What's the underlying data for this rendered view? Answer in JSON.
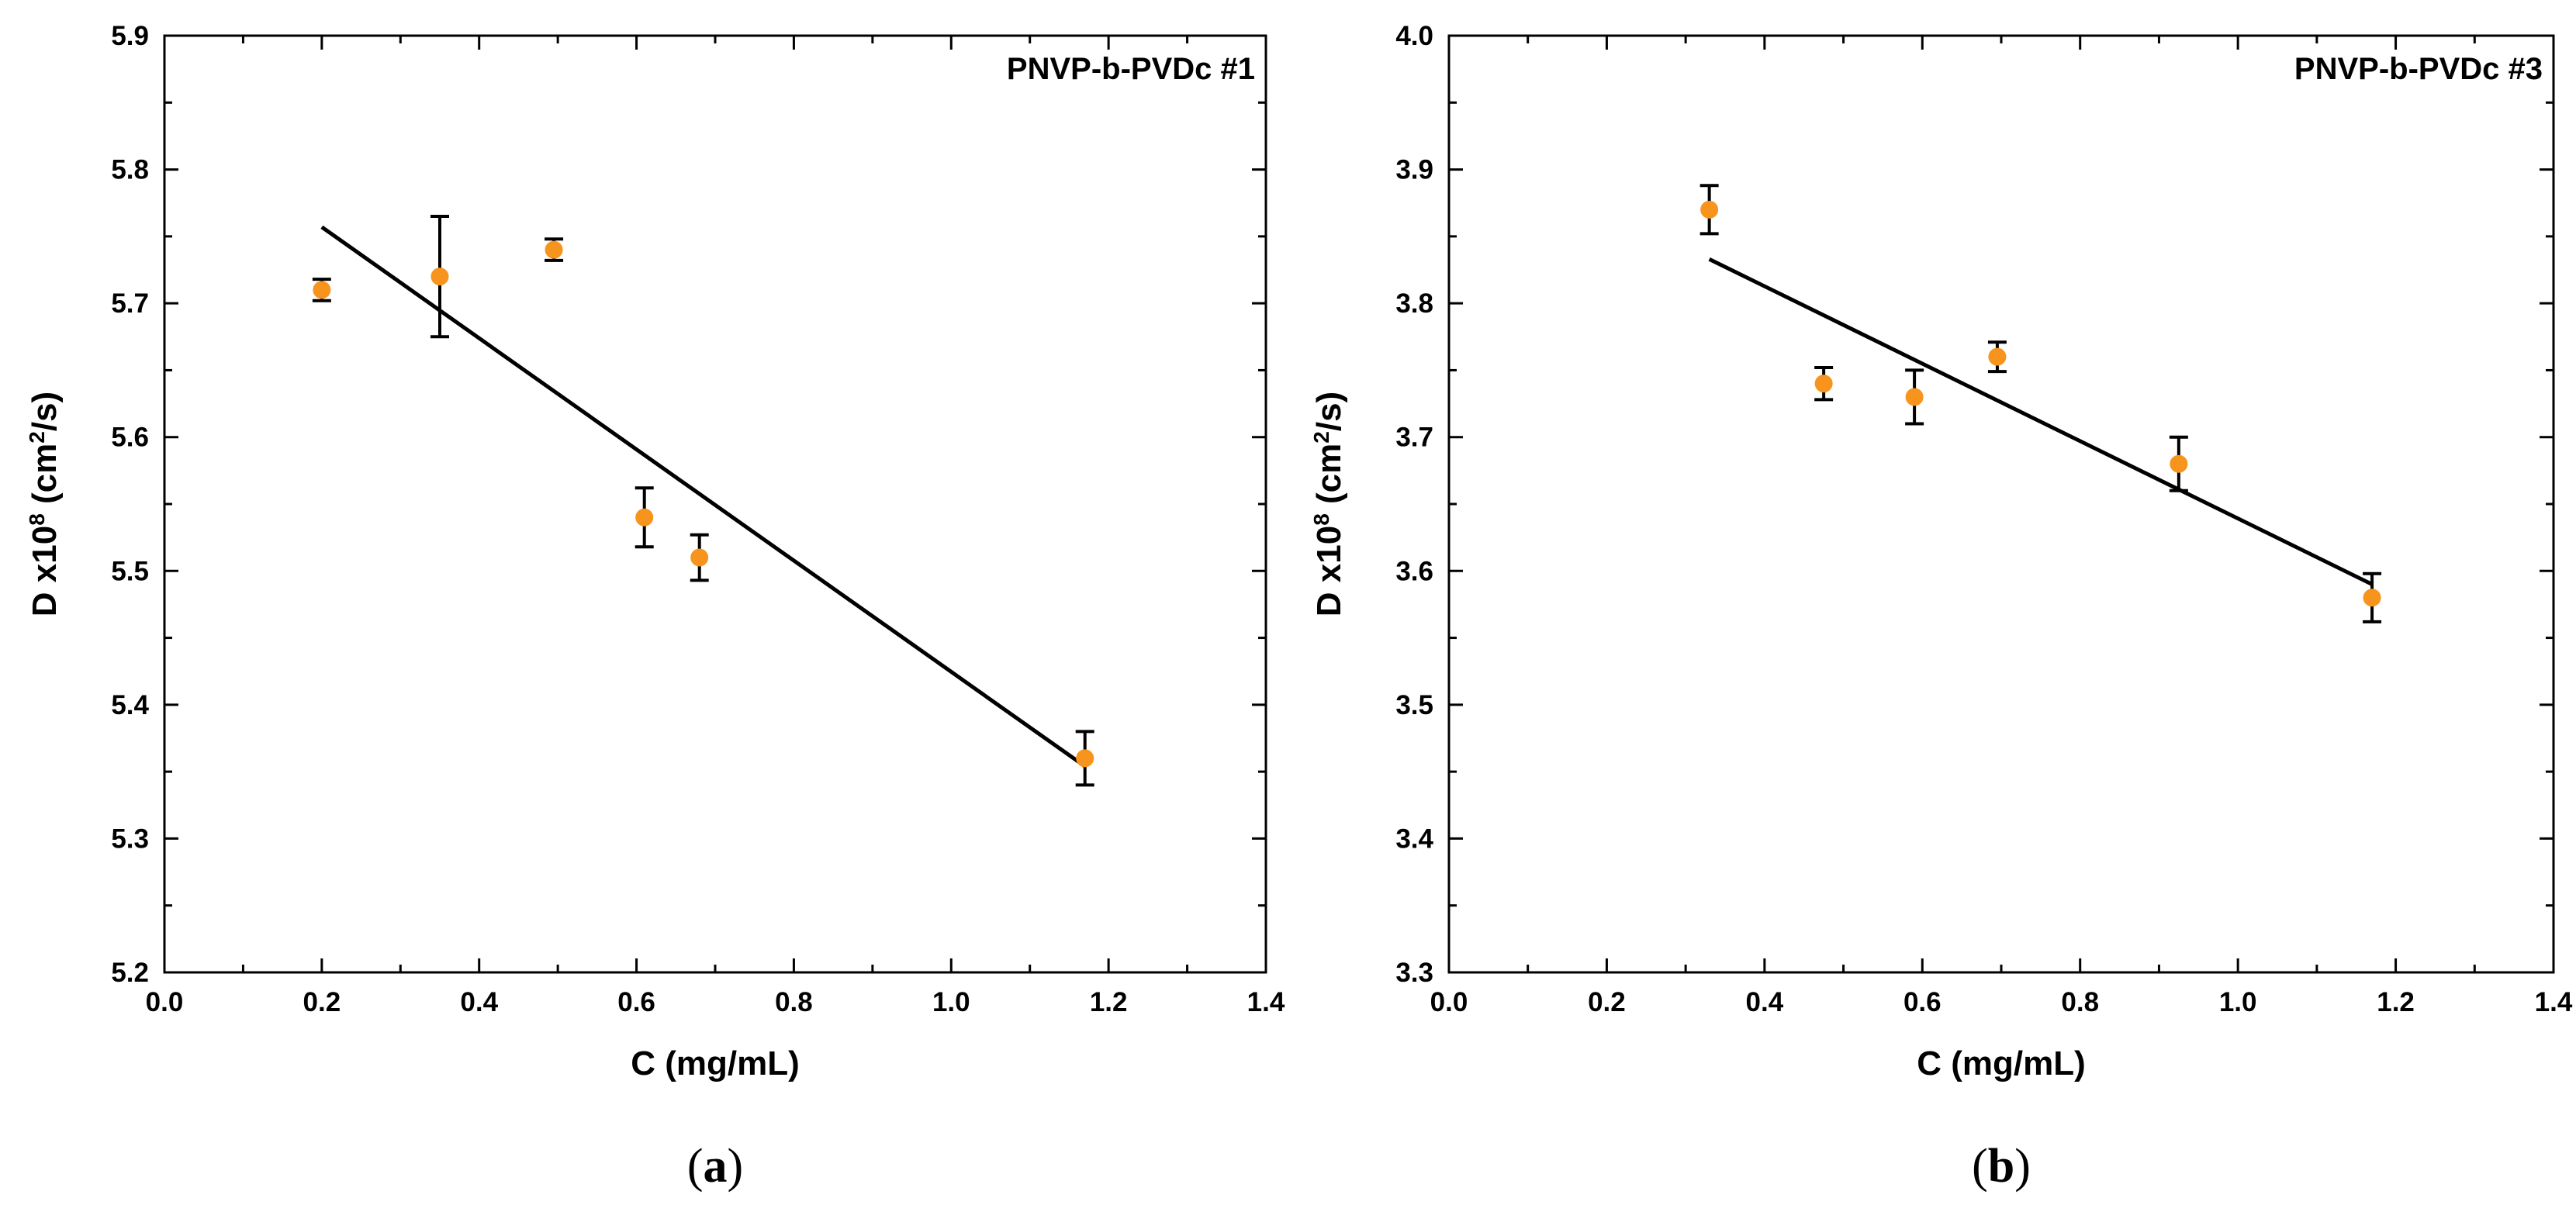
{
  "colors": {
    "marker": "#f7941d",
    "line": "#000000",
    "axis": "#000000"
  },
  "chart_data": [
    {
      "type": "scatter",
      "id": "a",
      "title": "PNVP-b-PVDc #1",
      "caption_letter": "a",
      "xlabel": "C (mg/mL)",
      "ylabel_prefix": "D x10",
      "ylabel_exp1": "8",
      "ylabel_mid": " (cm",
      "ylabel_exp2": "2",
      "ylabel_suffix": "/s)",
      "xlim": [
        0.0,
        1.4
      ],
      "ylim": [
        5.2,
        5.9
      ],
      "xticks": [
        "0.0",
        "0.2",
        "0.4",
        "0.6",
        "0.8",
        "1.0",
        "1.2",
        "1.4"
      ],
      "yticks": [
        "5.2",
        "5.3",
        "5.4",
        "5.5",
        "5.6",
        "5.7",
        "5.8",
        "5.9"
      ],
      "points": [
        {
          "x": 0.2,
          "y": 5.71,
          "err_low": 0.008,
          "err_high": 0.008
        },
        {
          "x": 0.35,
          "y": 5.72,
          "err_low": 0.045,
          "err_high": 0.045
        },
        {
          "x": 0.495,
          "y": 5.74,
          "err_low": 0.008,
          "err_high": 0.008
        },
        {
          "x": 0.61,
          "y": 5.54,
          "err_low": 0.022,
          "err_high": 0.022
        },
        {
          "x": 0.68,
          "y": 5.51,
          "err_low": 0.017,
          "err_high": 0.017
        },
        {
          "x": 1.17,
          "y": 5.36,
          "err_low": 0.02,
          "err_high": 0.02
        }
      ],
      "fit": {
        "x": [
          0.2,
          1.17
        ],
        "y": [
          5.757,
          5.354
        ]
      }
    },
    {
      "type": "scatter",
      "id": "b",
      "title": "PNVP-b-PVDc #3",
      "caption_letter": "b",
      "xlabel": "C (mg/mL)",
      "ylabel_prefix": "D x10",
      "ylabel_exp1": "8",
      "ylabel_mid": " (cm",
      "ylabel_exp2": "2",
      "ylabel_suffix": "/s)",
      "xlim": [
        0.0,
        1.4
      ],
      "ylim": [
        3.3,
        4.0
      ],
      "xticks": [
        "0.0",
        "0.2",
        "0.4",
        "0.6",
        "0.8",
        "1.0",
        "1.2",
        "1.4"
      ],
      "yticks": [
        "3.3",
        "3.4",
        "3.5",
        "3.6",
        "3.7",
        "3.8",
        "3.9",
        "4.0"
      ],
      "points": [
        {
          "x": 0.33,
          "y": 3.87,
          "err_low": 0.018,
          "err_high": 0.018
        },
        {
          "x": 0.475,
          "y": 3.74,
          "err_low": 0.012,
          "err_high": 0.012
        },
        {
          "x": 0.59,
          "y": 3.73,
          "err_low": 0.02,
          "err_high": 0.02
        },
        {
          "x": 0.695,
          "y": 3.76,
          "err_low": 0.011,
          "err_high": 0.011
        },
        {
          "x": 0.925,
          "y": 3.68,
          "err_low": 0.02,
          "err_high": 0.02
        },
        {
          "x": 1.17,
          "y": 3.58,
          "err_low": 0.018,
          "err_high": 0.018
        }
      ],
      "fit": {
        "x": [
          0.33,
          1.17
        ],
        "y": [
          3.833,
          3.59
        ]
      }
    }
  ]
}
